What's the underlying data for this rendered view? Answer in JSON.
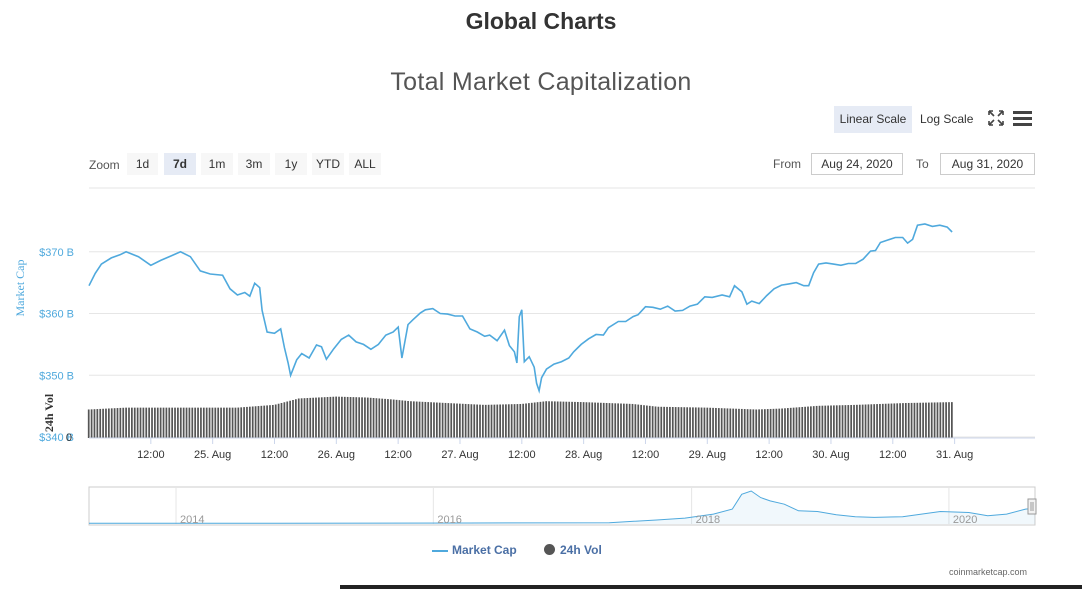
{
  "page": {
    "title": "Global Charts",
    "credit": "coinmarketcap.com"
  },
  "chart_controls": {
    "linear_scale_label": "Linear Scale",
    "log_scale_label": "Log Scale",
    "zoom_label": "Zoom",
    "zoom_buttons": [
      "1d",
      "7d",
      "1m",
      "3m",
      "1y",
      "YTD",
      "ALL"
    ],
    "zoom_selected": "7d",
    "from_label": "From",
    "from_value": "Aug 24, 2020",
    "to_label": "To",
    "to_value": "Aug 31, 2020"
  },
  "colors": {
    "market_cap": "#4fa9dd",
    "volume": "#555555",
    "grid": "#e6e6e6",
    "axis_text_blue": "#4fa9dd",
    "axis_text_dark": "#333333",
    "legend_text": "#4a6fa5"
  },
  "chart_data": {
    "type": "line",
    "title": "Total Market Capitalization",
    "ylabel": "Market Cap",
    "ylabel_volume": "24h Vol",
    "y_ticks": [
      "$370 B",
      "$360 B",
      "$350 B",
      "$340 B"
    ],
    "y_volume_tick": "0",
    "ylim": [
      340,
      380
    ],
    "x_ticks": [
      "12:00",
      "25. Aug",
      "12:00",
      "26. Aug",
      "12:00",
      "27. Aug",
      "12:00",
      "28. Aug",
      "12:00",
      "29. Aug",
      "12:00",
      "30. Aug",
      "12:00",
      "31. Aug"
    ],
    "x_range_days": [
      0,
      7.65
    ],
    "series": [
      {
        "name": "Market Cap",
        "unit": "billion USD",
        "points": [
          [
            0.0,
            364.5
          ],
          [
            0.05,
            366.5
          ],
          [
            0.1,
            368.0
          ],
          [
            0.18,
            369.0
          ],
          [
            0.25,
            369.5
          ],
          [
            0.3,
            370.0
          ],
          [
            0.4,
            369.2
          ],
          [
            0.5,
            367.8
          ],
          [
            0.58,
            368.6
          ],
          [
            0.66,
            369.3
          ],
          [
            0.74,
            370.0
          ],
          [
            0.82,
            369.2
          ],
          [
            0.9,
            366.9
          ],
          [
            0.98,
            366.4
          ],
          [
            1.08,
            366.2
          ],
          [
            1.14,
            364.0
          ],
          [
            1.2,
            363.0
          ],
          [
            1.26,
            363.4
          ],
          [
            1.3,
            362.8
          ],
          [
            1.34,
            364.9
          ],
          [
            1.38,
            364.2
          ],
          [
            1.4,
            360.5
          ],
          [
            1.44,
            357.0
          ],
          [
            1.5,
            356.8
          ],
          [
            1.55,
            357.5
          ],
          [
            1.58,
            354.5
          ],
          [
            1.61,
            352.0
          ],
          [
            1.63,
            350.0
          ],
          [
            1.68,
            352.5
          ],
          [
            1.72,
            353.5
          ],
          [
            1.78,
            352.8
          ],
          [
            1.84,
            354.9
          ],
          [
            1.88,
            354.6
          ],
          [
            1.92,
            352.6
          ],
          [
            1.98,
            354.3
          ],
          [
            2.04,
            355.8
          ],
          [
            2.1,
            356.5
          ],
          [
            2.16,
            355.4
          ],
          [
            2.22,
            355.0
          ],
          [
            2.28,
            354.2
          ],
          [
            2.34,
            355.0
          ],
          [
            2.4,
            356.5
          ],
          [
            2.46,
            357.0
          ],
          [
            2.5,
            357.8
          ],
          [
            2.53,
            352.8
          ],
          [
            2.58,
            358.2
          ],
          [
            2.62,
            359.0
          ],
          [
            2.68,
            360.1
          ],
          [
            2.72,
            360.6
          ],
          [
            2.78,
            360.8
          ],
          [
            2.84,
            360.0
          ],
          [
            2.9,
            359.9
          ],
          [
            2.96,
            359.6
          ],
          [
            3.02,
            359.6
          ],
          [
            3.08,
            357.5
          ],
          [
            3.14,
            357.0
          ],
          [
            3.2,
            356.3
          ],
          [
            3.24,
            356.5
          ],
          [
            3.3,
            355.6
          ],
          [
            3.36,
            357.3
          ],
          [
            3.4,
            354.8
          ],
          [
            3.44,
            353.8
          ],
          [
            3.46,
            352.0
          ],
          [
            3.48,
            359.5
          ],
          [
            3.5,
            360.6
          ],
          [
            3.52,
            352.2
          ],
          [
            3.56,
            353.0
          ],
          [
            3.6,
            351.3
          ],
          [
            3.62,
            348.7
          ],
          [
            3.64,
            347.5
          ],
          [
            3.66,
            349.6
          ],
          [
            3.7,
            351.0
          ],
          [
            3.76,
            351.8
          ],
          [
            3.82,
            352.2
          ],
          [
            3.88,
            352.8
          ],
          [
            3.92,
            353.8
          ],
          [
            3.98,
            355.0
          ],
          [
            4.04,
            355.9
          ],
          [
            4.1,
            356.6
          ],
          [
            4.16,
            356.5
          ],
          [
            4.2,
            357.7
          ],
          [
            4.28,
            358.7
          ],
          [
            4.34,
            358.7
          ],
          [
            4.4,
            359.5
          ],
          [
            4.44,
            359.8
          ],
          [
            4.5,
            361.1
          ],
          [
            4.56,
            361.0
          ],
          [
            4.62,
            360.7
          ],
          [
            4.68,
            361.2
          ],
          [
            4.74,
            360.4
          ],
          [
            4.8,
            360.5
          ],
          [
            4.86,
            361.2
          ],
          [
            4.92,
            361.5
          ],
          [
            4.98,
            362.7
          ],
          [
            5.04,
            362.6
          ],
          [
            5.12,
            363.0
          ],
          [
            5.18,
            362.7
          ],
          [
            5.22,
            364.5
          ],
          [
            5.28,
            363.5
          ],
          [
            5.32,
            361.5
          ],
          [
            5.36,
            362.0
          ],
          [
            5.42,
            361.6
          ],
          [
            5.48,
            362.9
          ],
          [
            5.54,
            364.0
          ],
          [
            5.6,
            364.6
          ],
          [
            5.66,
            364.8
          ],
          [
            5.72,
            365.0
          ],
          [
            5.78,
            364.5
          ],
          [
            5.82,
            364.5
          ],
          [
            5.86,
            366.6
          ],
          [
            5.9,
            368.0
          ],
          [
            5.96,
            368.2
          ],
          [
            6.02,
            368.0
          ],
          [
            6.08,
            367.8
          ],
          [
            6.14,
            368.1
          ],
          [
            6.2,
            368.1
          ],
          [
            6.26,
            368.8
          ],
          [
            6.32,
            370.1
          ],
          [
            6.36,
            370.2
          ],
          [
            6.4,
            371.5
          ],
          [
            6.46,
            371.9
          ],
          [
            6.52,
            372.3
          ],
          [
            6.58,
            372.3
          ],
          [
            6.62,
            371.4
          ],
          [
            6.66,
            372.0
          ],
          [
            6.7,
            374.3
          ],
          [
            6.76,
            374.5
          ],
          [
            6.82,
            374.1
          ],
          [
            6.88,
            374.3
          ],
          [
            6.94,
            374.0
          ],
          [
            6.98,
            373.2
          ]
        ]
      },
      {
        "name": "24h Vol",
        "type": "column",
        "points": [
          [
            0.0,
            0.62
          ],
          [
            0.3,
            0.66
          ],
          [
            0.8,
            0.66
          ],
          [
            1.2,
            0.66
          ],
          [
            1.5,
            0.72
          ],
          [
            1.7,
            0.86
          ],
          [
            2.0,
            0.9
          ],
          [
            2.25,
            0.88
          ],
          [
            2.45,
            0.84
          ],
          [
            2.6,
            0.8
          ],
          [
            2.9,
            0.76
          ],
          [
            3.2,
            0.72
          ],
          [
            3.5,
            0.74
          ],
          [
            3.7,
            0.8
          ],
          [
            4.0,
            0.78
          ],
          [
            4.4,
            0.74
          ],
          [
            4.6,
            0.68
          ],
          [
            5.0,
            0.66
          ],
          [
            5.4,
            0.62
          ],
          [
            5.6,
            0.64
          ],
          [
            5.9,
            0.7
          ],
          [
            6.2,
            0.72
          ],
          [
            6.6,
            0.76
          ],
          [
            6.98,
            0.78
          ]
        ]
      }
    ],
    "navigator": {
      "x_ticks": [
        "2014",
        "2016",
        "2018",
        "2020"
      ],
      "points": [
        [
          0.0,
          0.02
        ],
        [
          0.2,
          0.02
        ],
        [
          0.4,
          0.03
        ],
        [
          0.55,
          0.04
        ],
        [
          0.6,
          0.12
        ],
        [
          0.63,
          0.18
        ],
        [
          0.66,
          0.3
        ],
        [
          0.68,
          0.45
        ],
        [
          0.69,
          0.9
        ],
        [
          0.7,
          1.0
        ],
        [
          0.71,
          0.8
        ],
        [
          0.72,
          0.7
        ],
        [
          0.735,
          0.6
        ],
        [
          0.75,
          0.4
        ],
        [
          0.77,
          0.38
        ],
        [
          0.79,
          0.28
        ],
        [
          0.81,
          0.22
        ],
        [
          0.83,
          0.2
        ],
        [
          0.86,
          0.22
        ],
        [
          0.88,
          0.3
        ],
        [
          0.9,
          0.38
        ],
        [
          0.93,
          0.35
        ],
        [
          0.95,
          0.25
        ],
        [
          0.97,
          0.3
        ],
        [
          0.99,
          0.45
        ],
        [
          1.0,
          0.48
        ]
      ]
    },
    "legend": [
      "Market Cap",
      "24h Vol"
    ]
  }
}
